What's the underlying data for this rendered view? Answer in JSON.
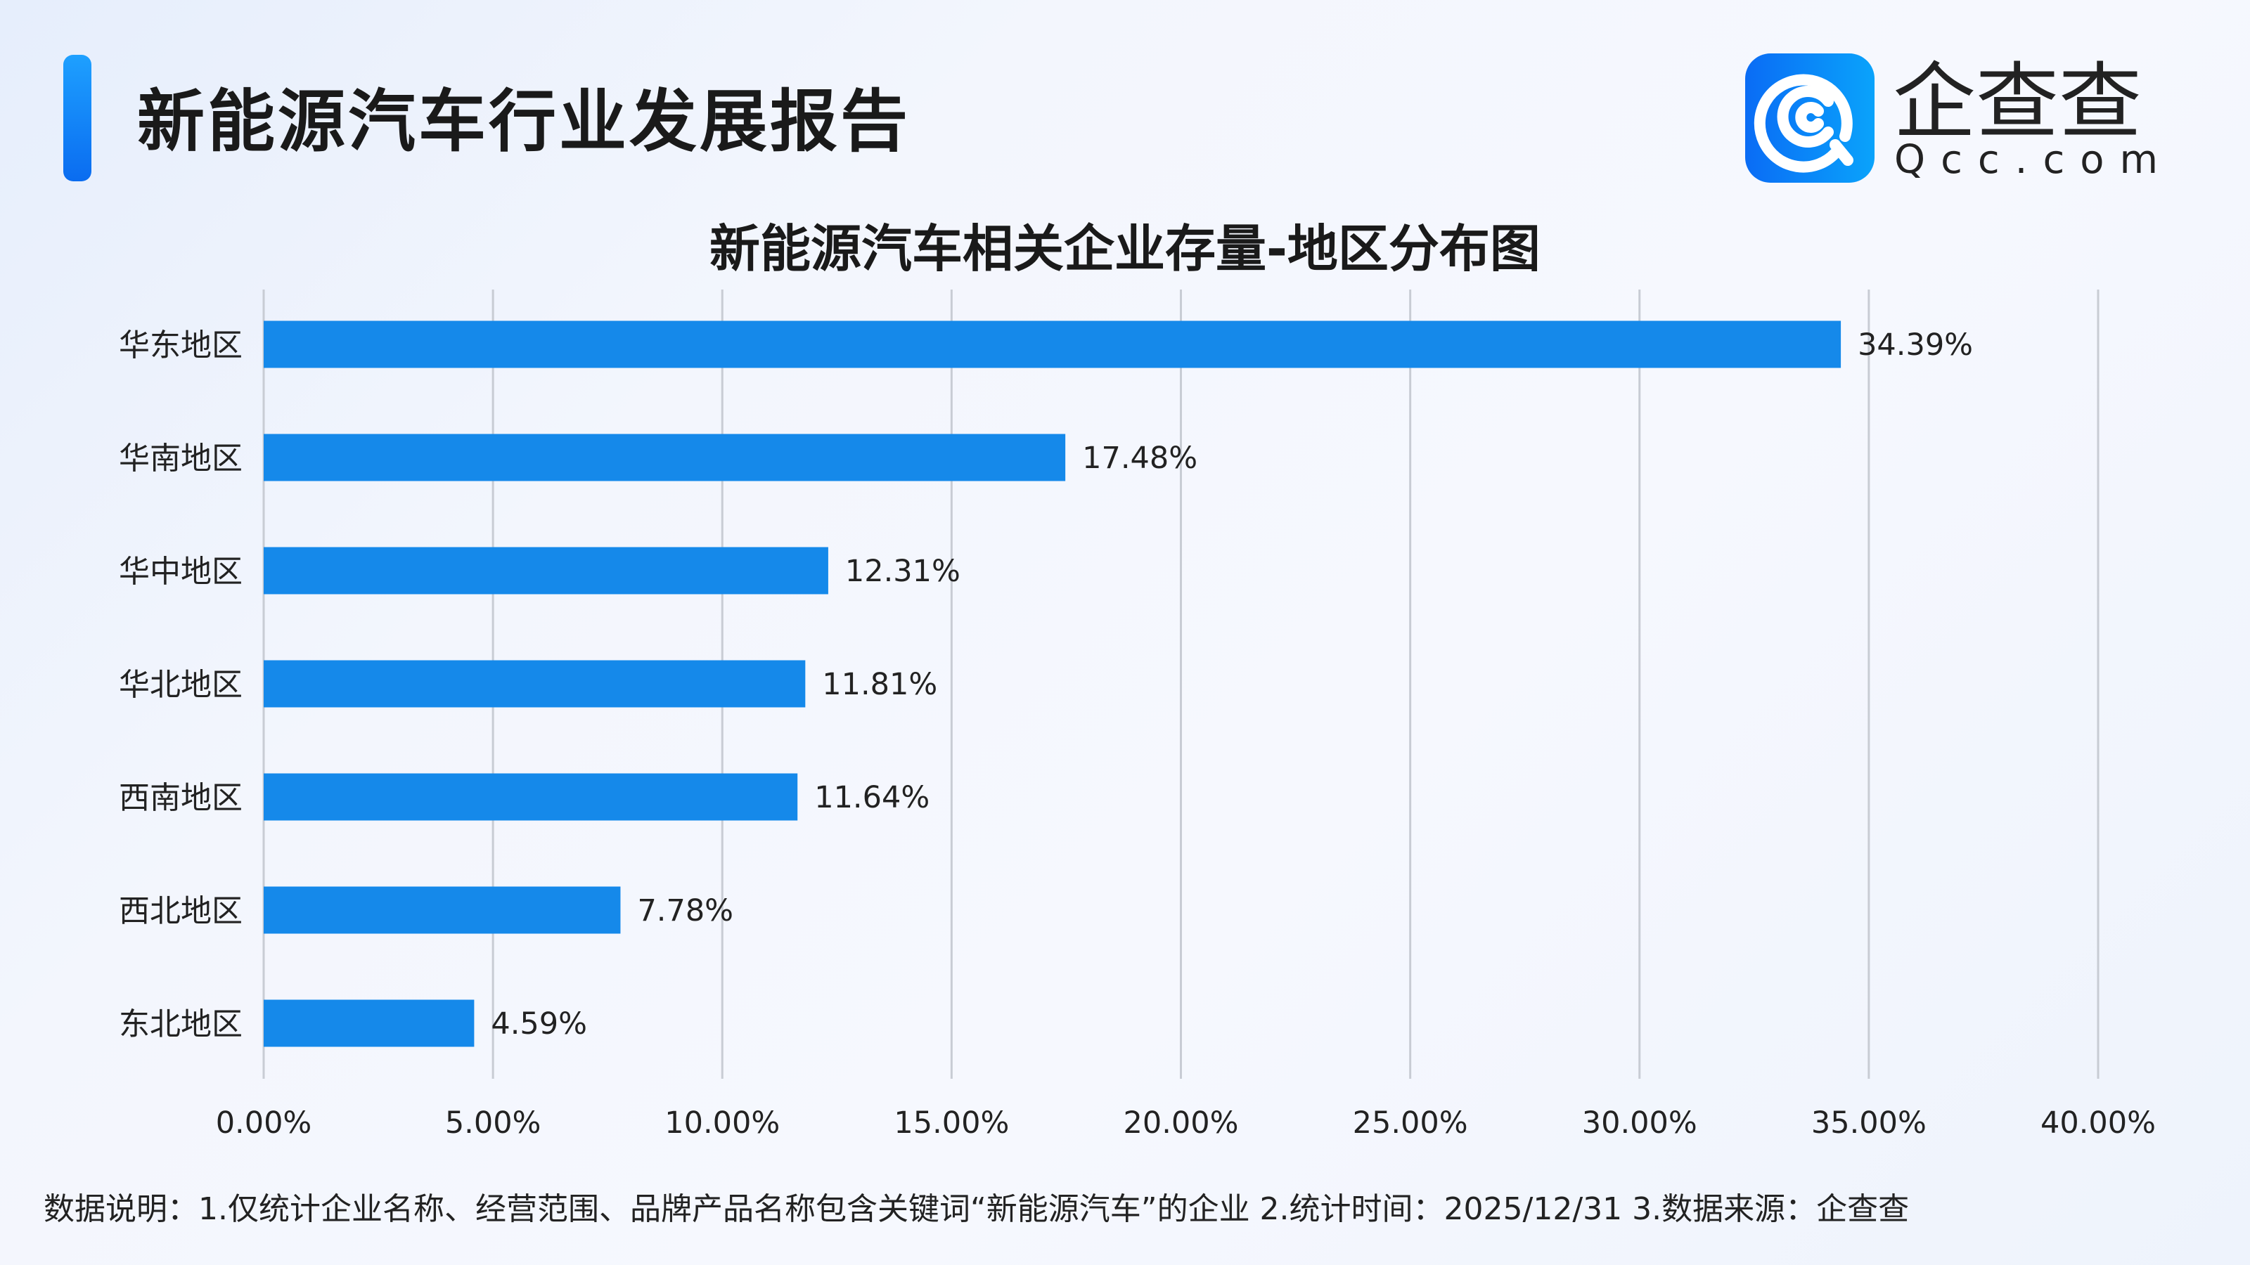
{
  "header": {
    "title": "新能源汽车行业发展报告"
  },
  "logo": {
    "name": "企查查",
    "domain": "Qcc.com",
    "icon": "qcc-logo-icon"
  },
  "colors": {
    "bar": "#1589ea",
    "accent": "#0a7cf5",
    "grid": "#c8ccd4"
  },
  "chart_data": {
    "type": "bar",
    "orientation": "horizontal",
    "title": "新能源汽车相关企业存量-地区分布图",
    "categories": [
      "华东地区",
      "华南地区",
      "华中地区",
      "华北地区",
      "西南地区",
      "西北地区",
      "东北地区"
    ],
    "values": [
      34.39,
      17.48,
      12.31,
      11.81,
      11.64,
      7.78,
      4.59
    ],
    "data_labels": [
      "34.39%",
      "17.48%",
      "12.31%",
      "11.81%",
      "11.64%",
      "7.78%",
      "4.59%"
    ],
    "xlim": [
      0,
      40
    ],
    "xticks": [
      "0.00%",
      "5.00%",
      "10.00%",
      "15.00%",
      "20.00%",
      "25.00%",
      "30.00%",
      "35.00%",
      "40.00%"
    ],
    "xlabel": "",
    "ylabel": "",
    "grid": "vertical"
  },
  "footer": {
    "note": "数据说明：1.仅统计企业名称、经营范围、品牌产品名称包含关键词“新能源汽车”的企业   2.统计时间：2025/12/31   3.数据来源：企查查"
  }
}
